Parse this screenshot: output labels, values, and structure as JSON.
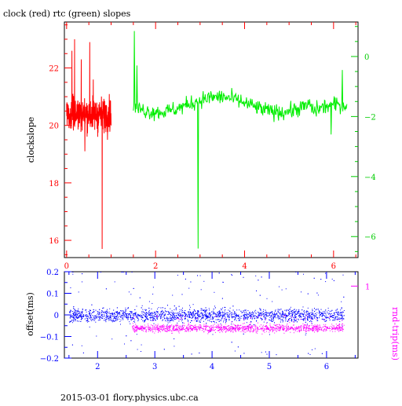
{
  "chart_data": [
    {
      "type": "line",
      "title": "clock (red) rtc (green) slopes",
      "ylabel": "clockslope",
      "x_range": [
        -0.05,
        6.55
      ],
      "x_ticks": [
        0,
        2,
        4,
        6
      ],
      "y_left_range": [
        15.4,
        23.6
      ],
      "y_left_ticks": [
        16,
        18,
        20,
        22
      ],
      "y_right_range": [
        -6.7,
        1.15
      ],
      "y_right_ticks": [
        0,
        -2,
        -4,
        -6
      ],
      "series": [
        {
          "color": "#ff0000",
          "axis": "left",
          "x_range": [
            0.0,
            1.0
          ],
          "baseline": 20.4,
          "noise": 0.55,
          "spikes": [
            {
              "x": 0.12,
              "y": 22.6
            },
            {
              "x": 0.18,
              "y": 23.0
            },
            {
              "x": 0.33,
              "y": 22.3
            },
            {
              "x": 0.41,
              "y": 19.1
            },
            {
              "x": 0.52,
              "y": 22.9
            },
            {
              "x": 0.6,
              "y": 21.6
            },
            {
              "x": 0.7,
              "y": 19.6
            },
            {
              "x": 0.8,
              "y": 15.7
            },
            {
              "x": 0.92,
              "y": 19.5
            }
          ]
        },
        {
          "color": "#00ee00",
          "axis": "right",
          "x_range": [
            1.5,
            6.3
          ],
          "baseline": -1.6,
          "noise": 0.25,
          "spikes": [
            {
              "x": 1.52,
              "y": 0.85
            },
            {
              "x": 1.58,
              "y": -0.3
            },
            {
              "x": 2.95,
              "y": -6.4
            },
            {
              "x": 5.95,
              "y": -2.6
            },
            {
              "x": 6.2,
              "y": -0.45
            }
          ]
        }
      ]
    },
    {
      "type": "scatter",
      "ylabel": "offset(ms)",
      "ylabel_right": "rnd-trip(ms)",
      "x_range": [
        1.42,
        6.55
      ],
      "x_ticks": [
        2,
        3,
        4,
        5,
        6
      ],
      "y_left_range": [
        -0.2,
        0.2
      ],
      "y_left_ticks": [
        0.2,
        0.1,
        0,
        -0.1,
        -0.2
      ],
      "y_right_ticks": [
        1
      ],
      "series": [
        {
          "color": "#0000ff",
          "axis": "left",
          "x_range": [
            1.5,
            6.3
          ],
          "baseline": 0.0,
          "noise": 0.03,
          "point_count": 2600
        },
        {
          "color": "#ff00ff",
          "axis": "right",
          "x_range": [
            2.6,
            6.3
          ],
          "baseline": 0.42,
          "noise": 0.05,
          "point_count": 1300
        }
      ]
    }
  ],
  "footer": "2015-03-01 flory.physics.ubc.ca"
}
